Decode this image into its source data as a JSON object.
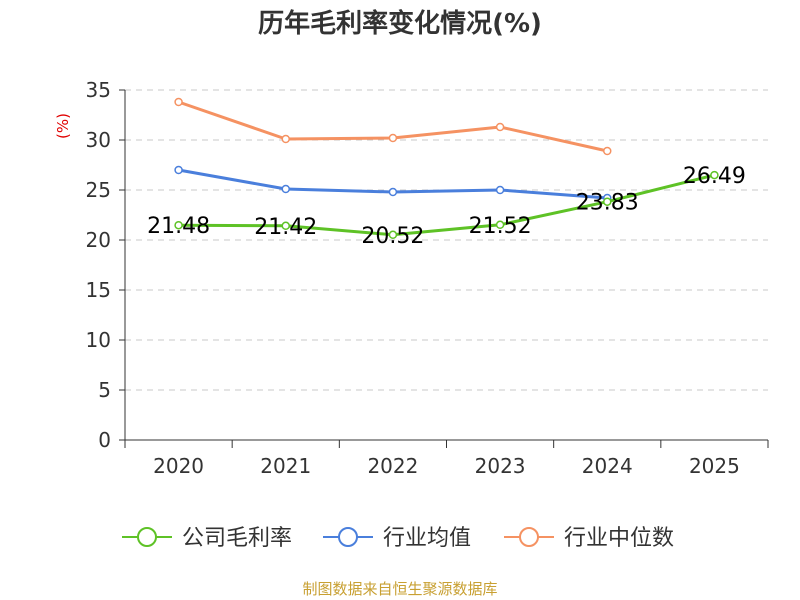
{
  "chart_data": {
    "type": "line",
    "title": "历年毛利率变化情况(%)",
    "ylabel": "(%)",
    "categories": [
      "2020",
      "2021",
      "2022",
      "2023",
      "2024",
      "2025"
    ],
    "ylim": [
      0,
      35
    ],
    "yticks": [
      "0",
      "5",
      "10",
      "15",
      "20",
      "25",
      "30",
      "35"
    ],
    "grid": true,
    "legend_position": "bottom",
    "series": [
      {
        "name": "公司毛利率",
        "color": "#5ec226",
        "values": [
          21.48,
          21.42,
          20.52,
          21.52,
          23.83,
          26.49
        ],
        "labels": [
          "21.48",
          "21.42",
          "20.52",
          "21.52",
          "23.83",
          "26.49"
        ]
      },
      {
        "name": "行业均值",
        "color": "#4a7fdc",
        "values": [
          27.0,
          25.1,
          24.8,
          25.0,
          24.2,
          null
        ]
      },
      {
        "name": "行业中位数",
        "color": "#f59262",
        "values": [
          33.8,
          30.1,
          30.2,
          31.3,
          28.9,
          null
        ]
      }
    ],
    "source": "制图数据来自恒生聚源数据库"
  }
}
